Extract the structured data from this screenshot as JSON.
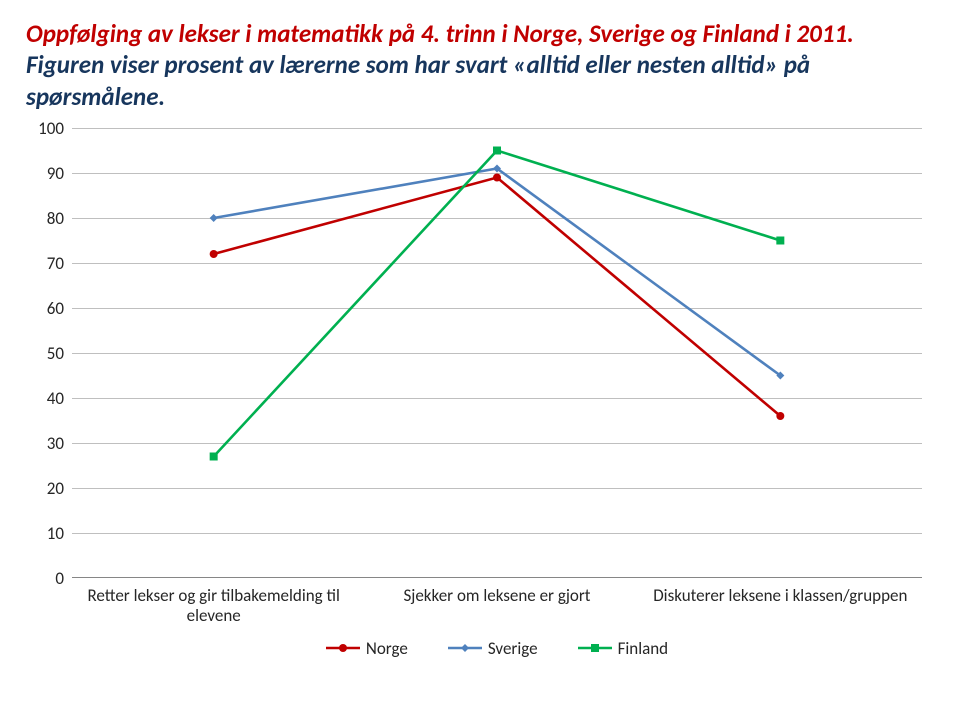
{
  "title_red": "Oppfølging av lekser i matematikk på 4. trinn i Norge, Sverige og Finland i 2011.",
  "title_black": " Figuren viser prosent av lærerne som har svart «alltid eller nesten alltid» på spørsmålene.",
  "chart": {
    "type": "line",
    "ylim": [
      0,
      100
    ],
    "ytick_step": 10,
    "yticks": [
      0,
      10,
      20,
      30,
      40,
      50,
      60,
      70,
      80,
      90,
      100
    ],
    "grid_color": "#bfbfbf",
    "axis_color": "#868686",
    "background_color": "#ffffff",
    "line_width": 2.6,
    "marker_size": 8,
    "categories": [
      "Retter lekser og gir tilbakemelding til elevene",
      "Sjekker om leksene er gjort",
      "Diskuterer leksene i klassen/gruppen"
    ],
    "series": [
      {
        "name": "Norge",
        "color": "#c00000",
        "marker": "circle",
        "values": [
          72,
          89,
          36
        ]
      },
      {
        "name": "Sverige",
        "color": "#4f81bd",
        "marker": "diamond",
        "values": [
          80,
          91,
          45
        ]
      },
      {
        "name": "Finland",
        "color": "#00b050",
        "marker": "square",
        "values": [
          27,
          95,
          75
        ]
      }
    ]
  }
}
